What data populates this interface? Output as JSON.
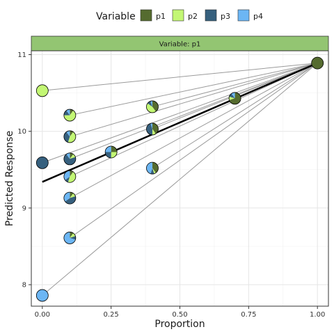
{
  "chart_data": {
    "type": "scatter",
    "subtype": "ternary-like mixture pie scatter with projection lines",
    "xlabel": "Proportion",
    "ylabel": "Predicted Response",
    "xlim": [
      -0.04,
      1.04
    ],
    "ylim": [
      7.72,
      11.05
    ],
    "x_ticks": [
      0,
      0.25,
      0.5,
      0.75,
      1
    ],
    "x_tick_labels": [
      "0.00",
      "0.25",
      "0.50",
      "0.75",
      "1.00"
    ],
    "y_ticks": [
      8,
      9,
      10,
      11
    ],
    "y_tick_labels": [
      "8",
      "9",
      "10",
      "11"
    ],
    "grid": true,
    "legend": {
      "title": "Variable",
      "position": "top",
      "items": [
        {
          "label": "p1",
          "color": "#556B2F"
        },
        {
          "label": "p2",
          "color": "#C3F774"
        },
        {
          "label": "p3",
          "color": "#36607E"
        },
        {
          "label": "p4",
          "color": "#6CB6F4"
        }
      ]
    },
    "facet_label": "Variable: p1",
    "apex": {
      "x": 1.0,
      "y": 10.89
    },
    "effect_line": [
      {
        "x": 0.0,
        "y": 9.34
      },
      {
        "x": 1.0,
        "y": 10.89
      }
    ],
    "points": [
      {
        "x": 0.0,
        "y": 10.53,
        "props": [
          0,
          1,
          0,
          0
        ]
      },
      {
        "x": 0.0,
        "y": 9.59,
        "props": [
          0,
          0,
          1,
          0
        ]
      },
      {
        "x": 0.0,
        "y": 7.86,
        "props": [
          0,
          0,
          0,
          1
        ]
      },
      {
        "x": 0.1,
        "y": 10.21,
        "props": [
          0.1,
          0.65,
          0.15,
          0.1
        ]
      },
      {
        "x": 0.1,
        "y": 9.93,
        "props": [
          0.1,
          0.45,
          0.35,
          0.1
        ]
      },
      {
        "x": 0.1,
        "y": 9.64,
        "props": [
          0.1,
          0.1,
          0.7,
          0.1
        ]
      },
      {
        "x": 0.1,
        "y": 9.41,
        "props": [
          0.1,
          0.45,
          0.1,
          0.35
        ]
      },
      {
        "x": 0.1,
        "y": 9.13,
        "props": [
          0.1,
          0.1,
          0.45,
          0.35
        ]
      },
      {
        "x": 0.1,
        "y": 8.61,
        "props": [
          0.1,
          0.1,
          0.1,
          0.7
        ]
      },
      {
        "x": 0.25,
        "y": 9.73,
        "props": [
          0.25,
          0.25,
          0.25,
          0.25
        ]
      },
      {
        "x": 0.4,
        "y": 10.32,
        "props": [
          0.4,
          0.45,
          0.1,
          0.05
        ]
      },
      {
        "x": 0.4,
        "y": 10.03,
        "props": [
          0.4,
          0.1,
          0.45,
          0.05
        ]
      },
      {
        "x": 0.4,
        "y": 9.52,
        "props": [
          0.4,
          0.05,
          0.1,
          0.45
        ]
      },
      {
        "x": 0.7,
        "y": 10.43,
        "props": [
          0.7,
          0.1,
          0.1,
          0.1
        ]
      },
      {
        "x": 1.0,
        "y": 10.89,
        "props": [
          1,
          0,
          0,
          0
        ]
      }
    ]
  }
}
